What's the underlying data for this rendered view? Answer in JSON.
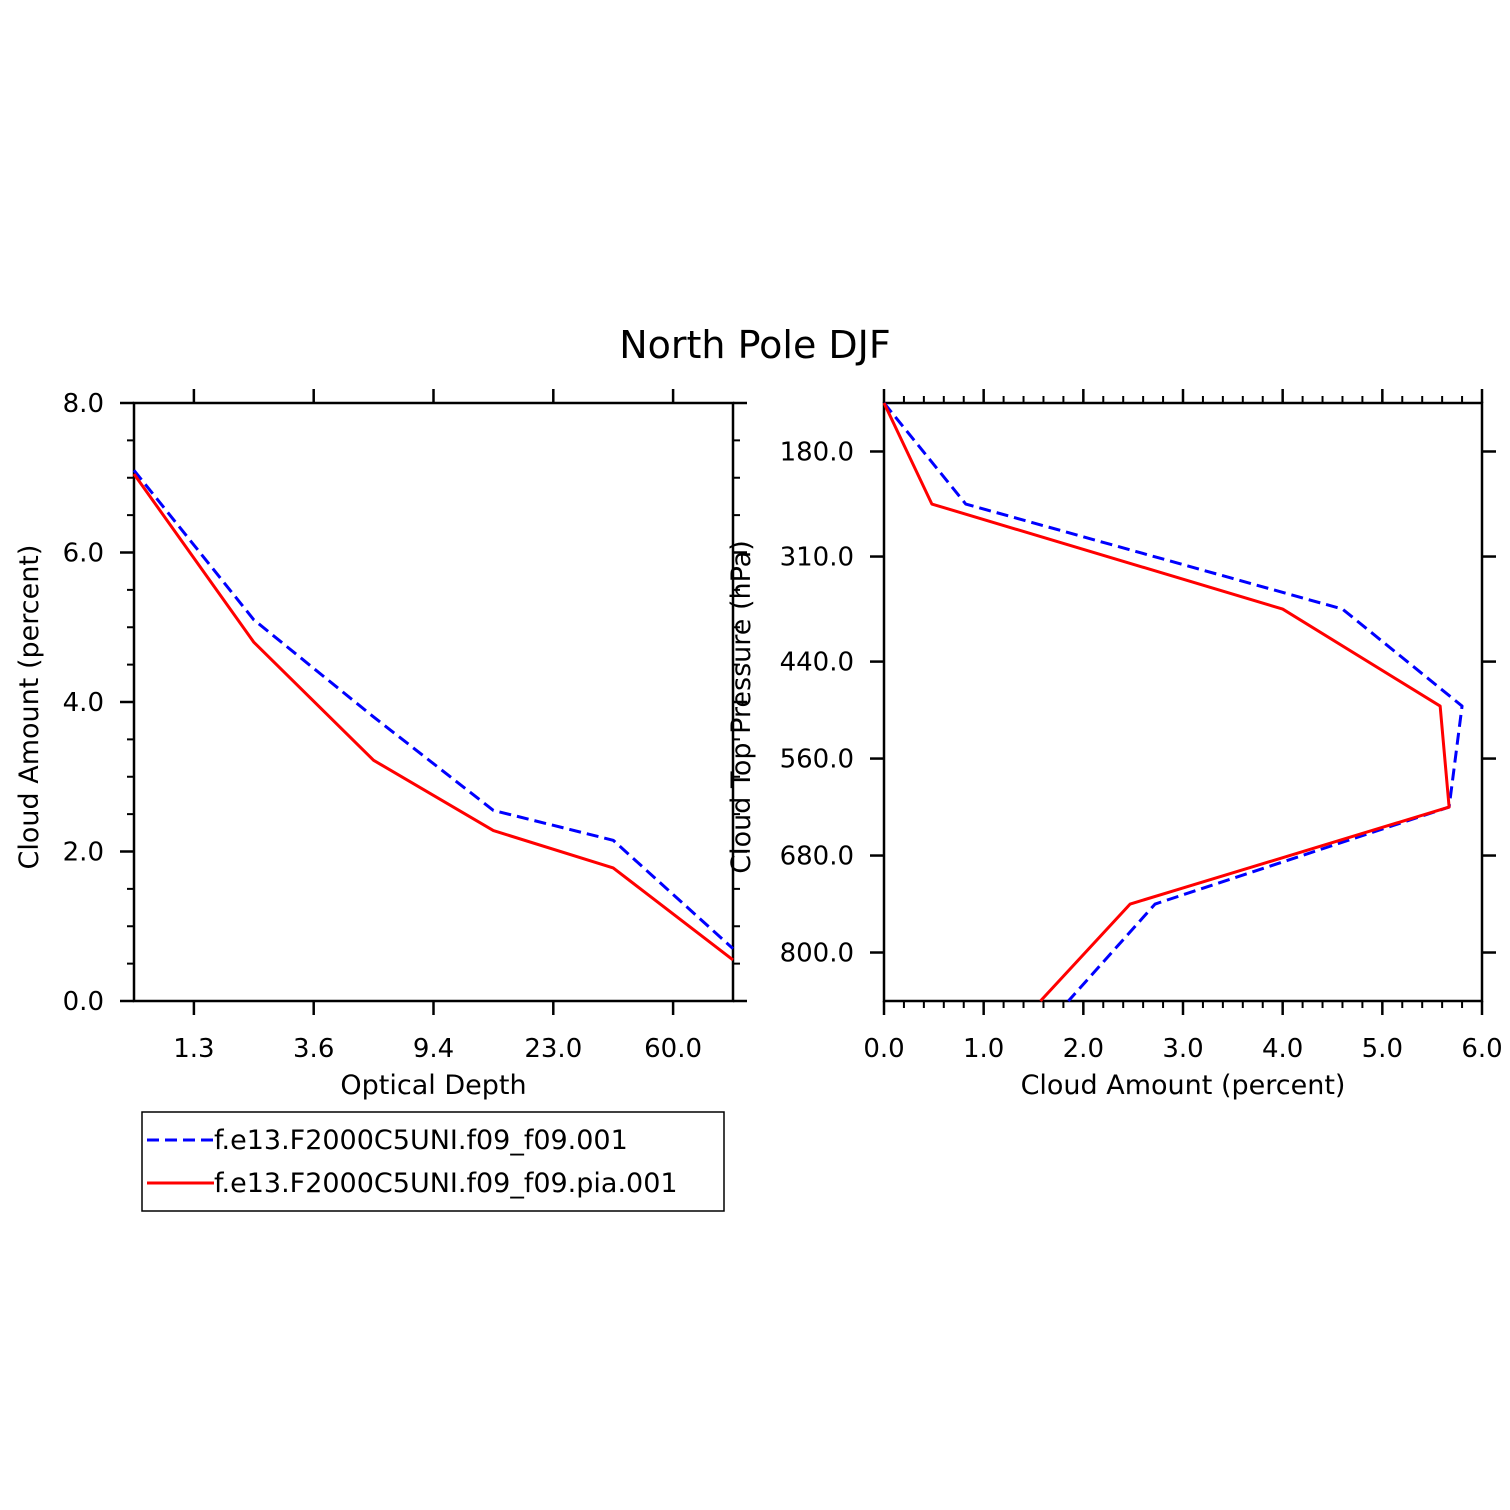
{
  "figure": {
    "title": "North Pole DJF"
  },
  "chart_data": [
    {
      "type": "line",
      "xlabel": "Optical Depth",
      "ylabel": "Cloud Amount (percent)",
      "x_index": [
        0,
        1,
        2,
        3,
        4,
        5
      ],
      "xlim": [
        0,
        5
      ],
      "x_tick_positions": [
        0.5,
        1.5,
        2.5,
        3.5,
        4.5
      ],
      "x_tick_labels": [
        "1.3",
        "3.6",
        "9.4",
        "23.0",
        "60.0"
      ],
      "ylim": [
        0,
        8
      ],
      "y_ticks": [
        0,
        2,
        4,
        6,
        8
      ],
      "y_tick_labels": [
        "0.0",
        "2.0",
        "4.0",
        "6.0",
        "8.0"
      ],
      "series": [
        {
          "name": "f.e13.F2000C5UNI.f09_f09.001",
          "color": "#0000ff",
          "dash": "dashed",
          "values": [
            7.1,
            5.1,
            3.8,
            2.55,
            2.15,
            0.7
          ]
        },
        {
          "name": "f.e13.F2000C5UNI.f09_f09.pia.001",
          "color": "#ff0000",
          "dash": "solid",
          "values": [
            7.05,
            4.8,
            3.22,
            2.28,
            1.78,
            0.55
          ]
        }
      ]
    },
    {
      "type": "line",
      "xlabel": "Cloud Amount (percent)",
      "ylabel": "Cloud Top Pressure (hPa)",
      "xlim": [
        0,
        6
      ],
      "x_ticks": [
        0,
        1,
        2,
        3,
        4,
        5,
        6
      ],
      "x_tick_labels": [
        "0.0",
        "1.0",
        "2.0",
        "3.0",
        "4.0",
        "5.0",
        "6.0"
      ],
      "ylim": [
        120,
        860
      ],
      "y_ticks": [
        180,
        310,
        440,
        560,
        680,
        800
      ],
      "y_tick_labels": [
        "180.0",
        "310.0",
        "440.0",
        "560.0",
        "680.0",
        "800.0"
      ],
      "pressure_levels": [
        120,
        245,
        375,
        495,
        620,
        740,
        860
      ],
      "series": [
        {
          "name": "f.e13.F2000C5UNI.f09_f09.001",
          "color": "#0000ff",
          "dash": "dashed",
          "values": [
            0.0,
            0.82,
            4.6,
            5.8,
            5.67,
            2.72,
            1.85
          ]
        },
        {
          "name": "f.e13.F2000C5UNI.f09_f09.pia.001",
          "color": "#ff0000",
          "dash": "solid",
          "values": [
            0.0,
            0.48,
            4.0,
            5.58,
            5.67,
            2.47,
            1.57
          ]
        }
      ]
    }
  ],
  "legend": {
    "items": [
      {
        "label": "f.e13.F2000C5UNI.f09_f09.001",
        "color": "#0000ff",
        "dash": "dashed"
      },
      {
        "label": "f.e13.F2000C5UNI.f09_f09.pia.001",
        "color": "#ff0000",
        "dash": "solid"
      }
    ]
  }
}
